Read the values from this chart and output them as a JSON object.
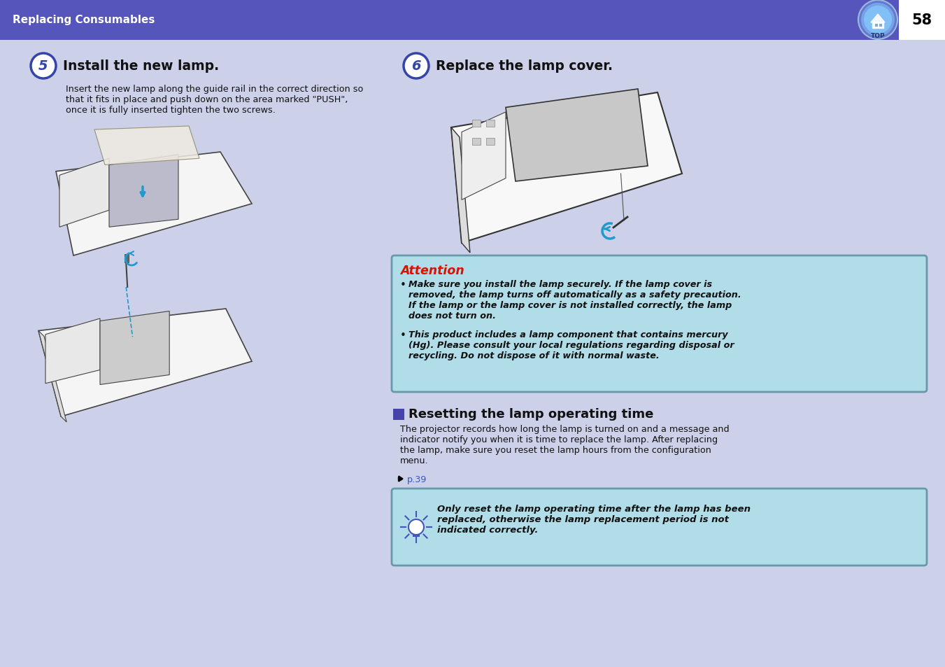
{
  "page_bg": "#ccd0e8",
  "header_bg": "#5555bb",
  "header_text": "Replacing Consumables",
  "header_text_color": "#ffffff",
  "page_num": "58",
  "step5_num": "5",
  "step5_circle_fill": "#ffffff",
  "step5_circle_edge": "#4444aa",
  "step5_num_color": "#4444aa",
  "step5_title": "Install the new lamp.",
  "step5_body": "Insert the new lamp along the guide rail in the correct direction so\nthat it fits in place and push down on the area marked \"PUSH\",\nonce it is fully inserted tighten the two screws.",
  "step6_num": "6",
  "step6_title": "Replace the lamp cover.",
  "attention_title": "Attention",
  "attention_title_color": "#dd1100",
  "attention_bg": "#b0dde8",
  "attention_border": "#6699aa",
  "attention_bullet1_line1": "Make sure you install the lamp securely. If the lamp cover is",
  "attention_bullet1_line2": "removed, the lamp turns off automatically as a safety precaution.",
  "attention_bullet1_line3": "If the lamp or the lamp cover is not installed correctly, the lamp",
  "attention_bullet1_line4": "does not turn on.",
  "attention_bullet2_line1": "This product includes a lamp component that contains mercury",
  "attention_bullet2_line2": "(Hg). Please consult your local regulations regarding disposal or",
  "attention_bullet2_line3": "recycling. Do not dispose of it with normal waste.",
  "section_title": "Resetting the lamp operating time",
  "section_square_color": "#4444aa",
  "section_body_line1": "The projector records how long the lamp is turned on and a message and",
  "section_body_line2": "indicator notify you when it is time to replace the lamp. After replacing",
  "section_body_line3": "the lamp, make sure you reset the lamp hours from the configuration",
  "section_body_line4": "menu.",
  "section_link": "p.39",
  "section_link_color": "#3355cc",
  "note_bg": "#b0dde8",
  "note_border": "#6699aa",
  "note_line1": "Only reset the lamp operating time after the lamp has been",
  "note_line2": "replaced, otherwise the lamp replacement period is not",
  "note_line3": "indicated correctly.",
  "text_color": "#111111",
  "body_fs": 9.2,
  "title_fs": 12.5,
  "step_title_fs": 13.5,
  "att_title_fs": 12.5,
  "att_body_fs": 9.2,
  "sec_title_fs": 13.0,
  "note_fs": 9.5
}
